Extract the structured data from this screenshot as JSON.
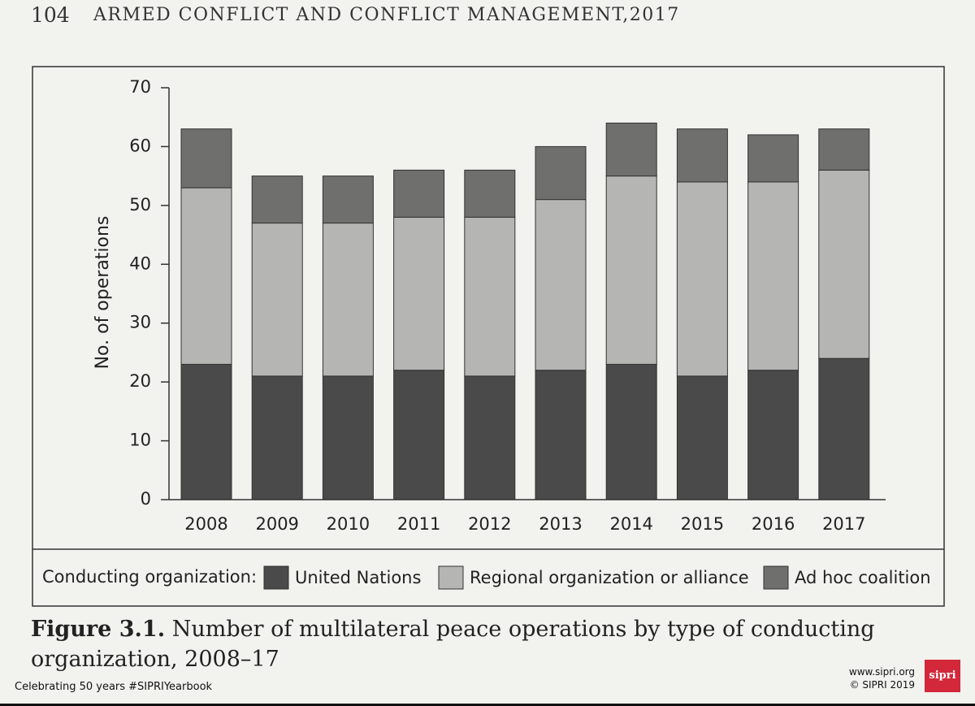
{
  "page": {
    "page_number": "104",
    "running_head": "ARMED CONFLICT AND CONFLICT MANAGEMENT,2017",
    "figure_label": "Figure 3.1.",
    "caption": "Number of multilateral peace operations by type of conducting organization, 2008–17",
    "footer_left": "Celebrating 50 years #SIPRIYearbook",
    "footer_url": "www.sipri.org",
    "footer_copyright": "© SIPRI 2019",
    "logo": "sipri"
  },
  "chart_data": {
    "type": "stacked_bar",
    "y_label": "No. of operations",
    "legend_title": "Conducting organization:",
    "categories": [
      "2008",
      "2009",
      "2010",
      "2011",
      "2012",
      "2013",
      "2014",
      "2015",
      "2016",
      "2017"
    ],
    "series": [
      {
        "name": "United Nations",
        "color": "#4a4a4a",
        "values": [
          23,
          21,
          21,
          22,
          21,
          22,
          23,
          21,
          22,
          24
        ]
      },
      {
        "name": "Regional organization or alliance",
        "color": "#b5b5b3",
        "values": [
          30,
          26,
          26,
          26,
          27,
          29,
          32,
          33,
          32,
          32
        ]
      },
      {
        "name": "Ad hoc coalition",
        "color": "#6f6f6e",
        "values": [
          10,
          8,
          8,
          8,
          8,
          9,
          9,
          9,
          8,
          7
        ]
      }
    ],
    "ylim": [
      0,
      70
    ],
    "yticks": [
      0,
      10,
      20,
      30,
      40,
      50,
      60,
      70
    ],
    "grid": false
  }
}
